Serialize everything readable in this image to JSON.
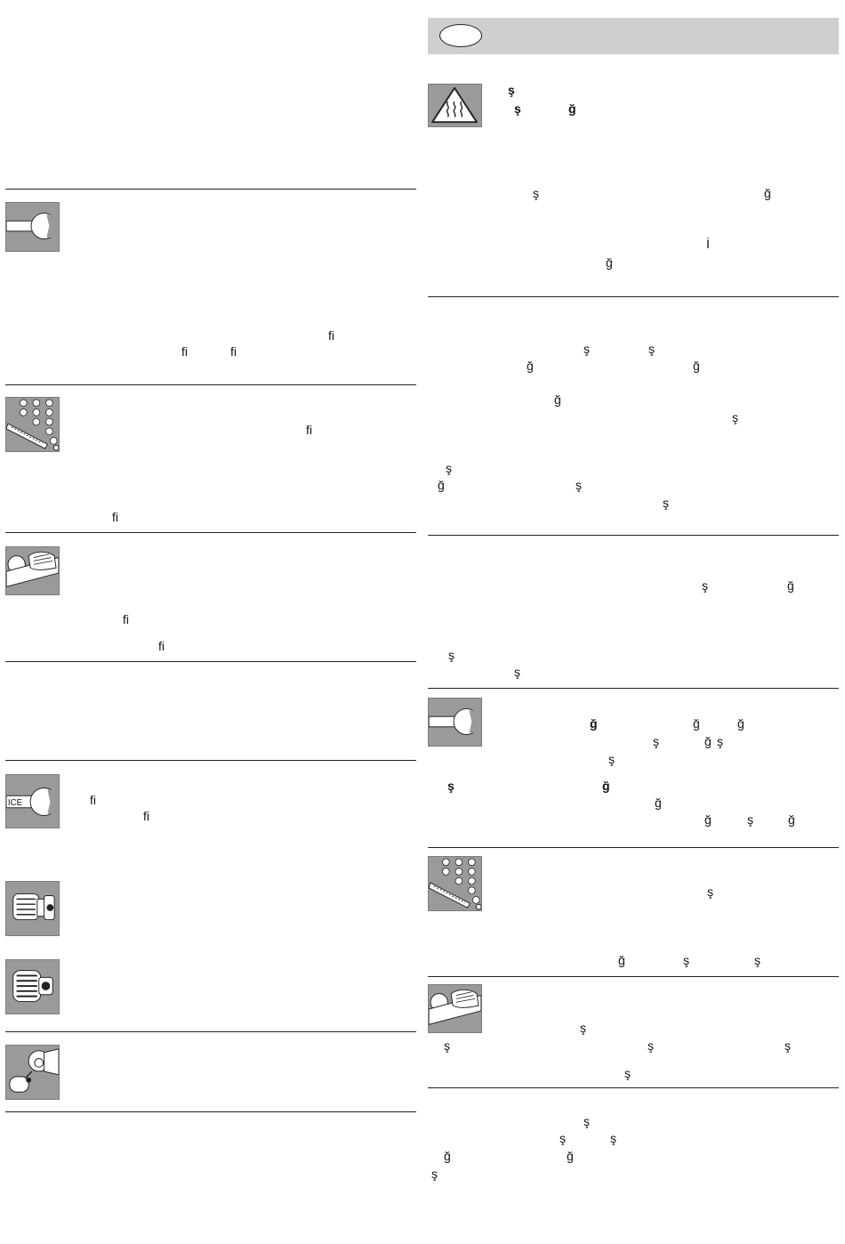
{
  "left_column": {
    "wrench_section": {
      "frags": [
        "ﬁ",
        "ﬁ",
        "ﬁ"
      ]
    },
    "gauge_section": {
      "frags": [
        "ﬁ",
        "ﬁ"
      ]
    },
    "hand_section": {
      "frags": [
        "ﬁ",
        "ﬁ"
      ]
    },
    "service_section": {
      "icon_text": "ICE",
      "frags": [
        "ﬁ",
        "ﬁ"
      ]
    }
  },
  "right_column": {
    "hot_warning": {
      "frags": [
        "ş",
        "ş",
        "ğ",
        "ğ",
        "ş",
        "İ",
        "ğ"
      ]
    },
    "section_2": {
      "frags": [
        "ş",
        "ş",
        "ğ",
        "ğ",
        "ğ",
        "ş",
        "ş",
        "ğ",
        "ş",
        "ş"
      ]
    },
    "section_3": {
      "frags": [
        "ş",
        "ğ",
        "ş",
        "ş"
      ]
    },
    "wrench_section": {
      "frags": [
        "ğ",
        "ğ",
        "ğ",
        "ş",
        "ğ",
        "ş",
        "ş",
        "ş",
        "ğ",
        "ğ",
        "ğ",
        "ş",
        "ğ"
      ]
    },
    "gauge_section": {
      "frags": [
        "ş",
        "ğ",
        "ş",
        "ş"
      ]
    },
    "hand_section": {
      "frags": [
        "ş",
        "ş",
        "ş",
        "ş",
        "ş"
      ]
    },
    "last_section": {
      "frags": [
        "ş",
        "ş",
        "ş",
        "ğ",
        "ğ",
        "ş"
      ]
    }
  }
}
